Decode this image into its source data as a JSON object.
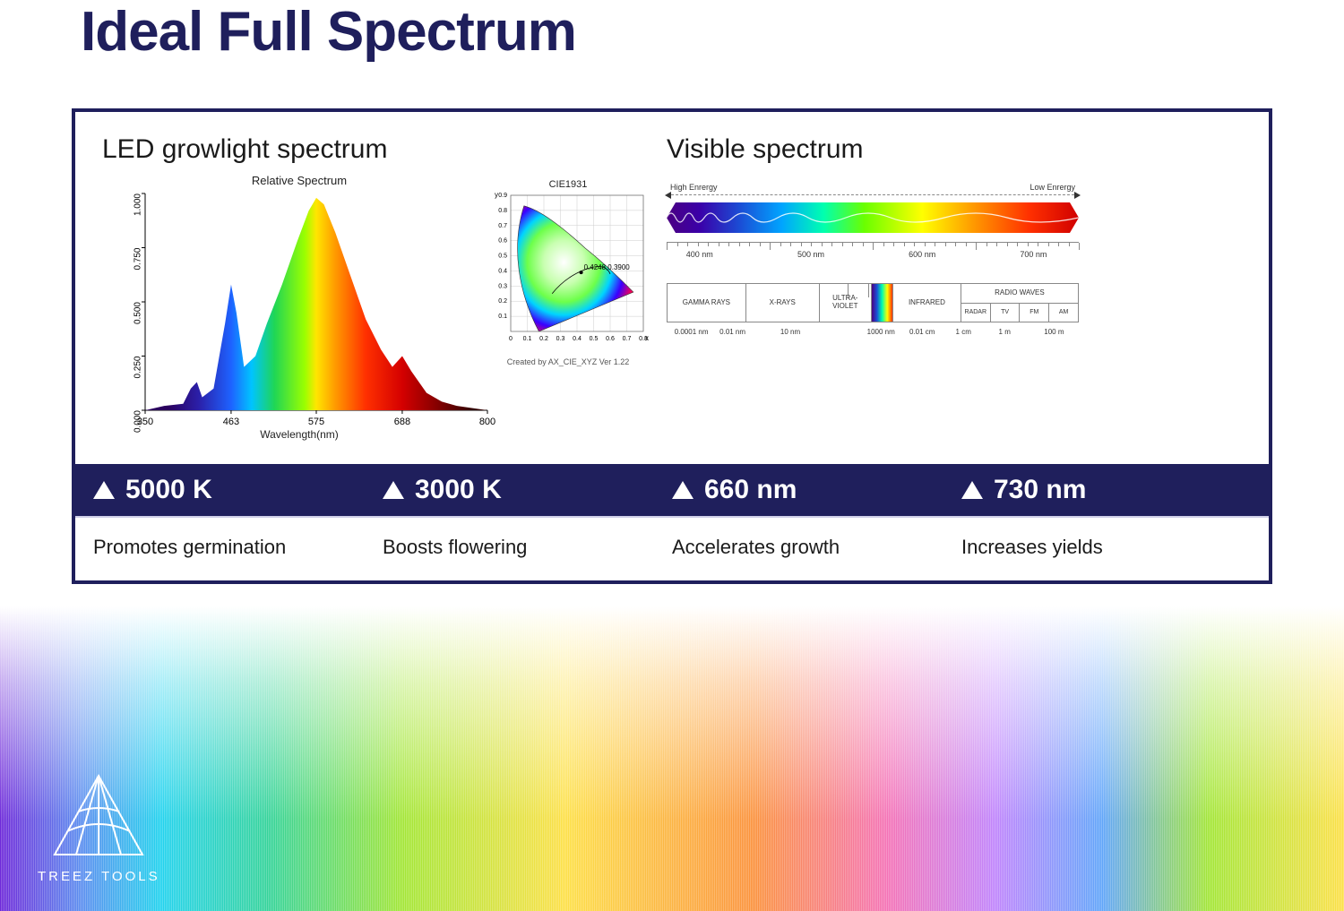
{
  "title": "Ideal Full Spectrum",
  "sections": {
    "left_title": "LED growlight spectrum",
    "right_title": "Visible spectrum"
  },
  "spectrum_chart": {
    "type": "area",
    "title": "Relative Spectrum",
    "xlabel": "Wavelength(nm)",
    "xlim": [
      350,
      800
    ],
    "ylim": [
      0.0,
      1.0
    ],
    "x_ticks": [
      350,
      463,
      575,
      688,
      800
    ],
    "y_ticks": [
      "0.000",
      "0.250",
      "0.500",
      "0.750",
      "1.000"
    ],
    "gradient_stops": [
      {
        "nm": 380,
        "color": "#2a005e"
      },
      {
        "nm": 420,
        "color": "#2b1fa8"
      },
      {
        "nm": 463,
        "color": "#1e62ff"
      },
      {
        "nm": 490,
        "color": "#00c4ff"
      },
      {
        "nm": 520,
        "color": "#1fd655"
      },
      {
        "nm": 560,
        "color": "#9bff00"
      },
      {
        "nm": 575,
        "color": "#ffe600"
      },
      {
        "nm": 600,
        "color": "#ff9a00"
      },
      {
        "nm": 640,
        "color": "#ff3000"
      },
      {
        "nm": 688,
        "color": "#d40000"
      },
      {
        "nm": 740,
        "color": "#7a0000"
      },
      {
        "nm": 780,
        "color": "#320000"
      }
    ],
    "curve_points": [
      [
        350,
        0.0
      ],
      [
        375,
        0.02
      ],
      [
        400,
        0.03
      ],
      [
        410,
        0.1
      ],
      [
        418,
        0.13
      ],
      [
        425,
        0.06
      ],
      [
        440,
        0.1
      ],
      [
        455,
        0.4
      ],
      [
        463,
        0.58
      ],
      [
        470,
        0.45
      ],
      [
        480,
        0.2
      ],
      [
        495,
        0.25
      ],
      [
        510,
        0.4
      ],
      [
        530,
        0.58
      ],
      [
        550,
        0.78
      ],
      [
        565,
        0.92
      ],
      [
        575,
        0.98
      ],
      [
        585,
        0.95
      ],
      [
        600,
        0.82
      ],
      [
        620,
        0.62
      ],
      [
        640,
        0.42
      ],
      [
        660,
        0.28
      ],
      [
        675,
        0.2
      ],
      [
        688,
        0.25
      ],
      [
        700,
        0.18
      ],
      [
        720,
        0.08
      ],
      [
        740,
        0.04
      ],
      [
        760,
        0.02
      ],
      [
        800,
        0.0
      ]
    ]
  },
  "cie": {
    "title": "CIE1931",
    "point_label": "0.4248,0.3900",
    "caption": "Created by AX_CIE_XYZ Ver 1.22",
    "xlim": [
      0,
      0.8
    ],
    "ylim": [
      0,
      0.9
    ],
    "x_ticks": [
      "0",
      "0.1",
      "0.2",
      "0.3",
      "0.4",
      "0.5",
      "0.6",
      "0.7",
      "0.8"
    ],
    "y_ticks": [
      "0.1",
      "0.2",
      "0.3",
      "0.4",
      "0.5",
      "0.6",
      "0.7",
      "0.8",
      "0.9"
    ]
  },
  "visible": {
    "left_label": "High Enrergy",
    "right_label": "Low Enrergy",
    "wavelength_ticks": [
      "400 nm",
      "500 nm",
      "600 nm",
      "700 nm"
    ],
    "wavelength_positions_pct": [
      8,
      35,
      62,
      89
    ]
  },
  "em_bands": {
    "cells": [
      "GAMMA RAYS",
      "X-RAYS",
      "ULTRA-VIOLET",
      "INFRARED",
      "RADIO WAVES"
    ],
    "radio_sub": [
      "RADAR",
      "TV",
      "FM",
      "AM"
    ],
    "bottom_ticks": [
      "0.0001 nm",
      "0.01 nm",
      "10 nm",
      "1000 nm",
      "0.01 cm",
      "1 cm",
      "1 m",
      "100 m"
    ],
    "bottom_positions_pct": [
      6,
      16,
      30,
      52,
      62,
      72,
      82,
      94
    ]
  },
  "spec_band": [
    {
      "value": "5000 K"
    },
    {
      "value": "3000 K"
    },
    {
      "value": "660 nm"
    },
    {
      "value": "730 nm"
    }
  ],
  "benefits": [
    "Promotes germination",
    "Boosts flowering",
    "Accelerates growth",
    "Increases yields"
  ],
  "brand": "TREEZ TOOLS"
}
